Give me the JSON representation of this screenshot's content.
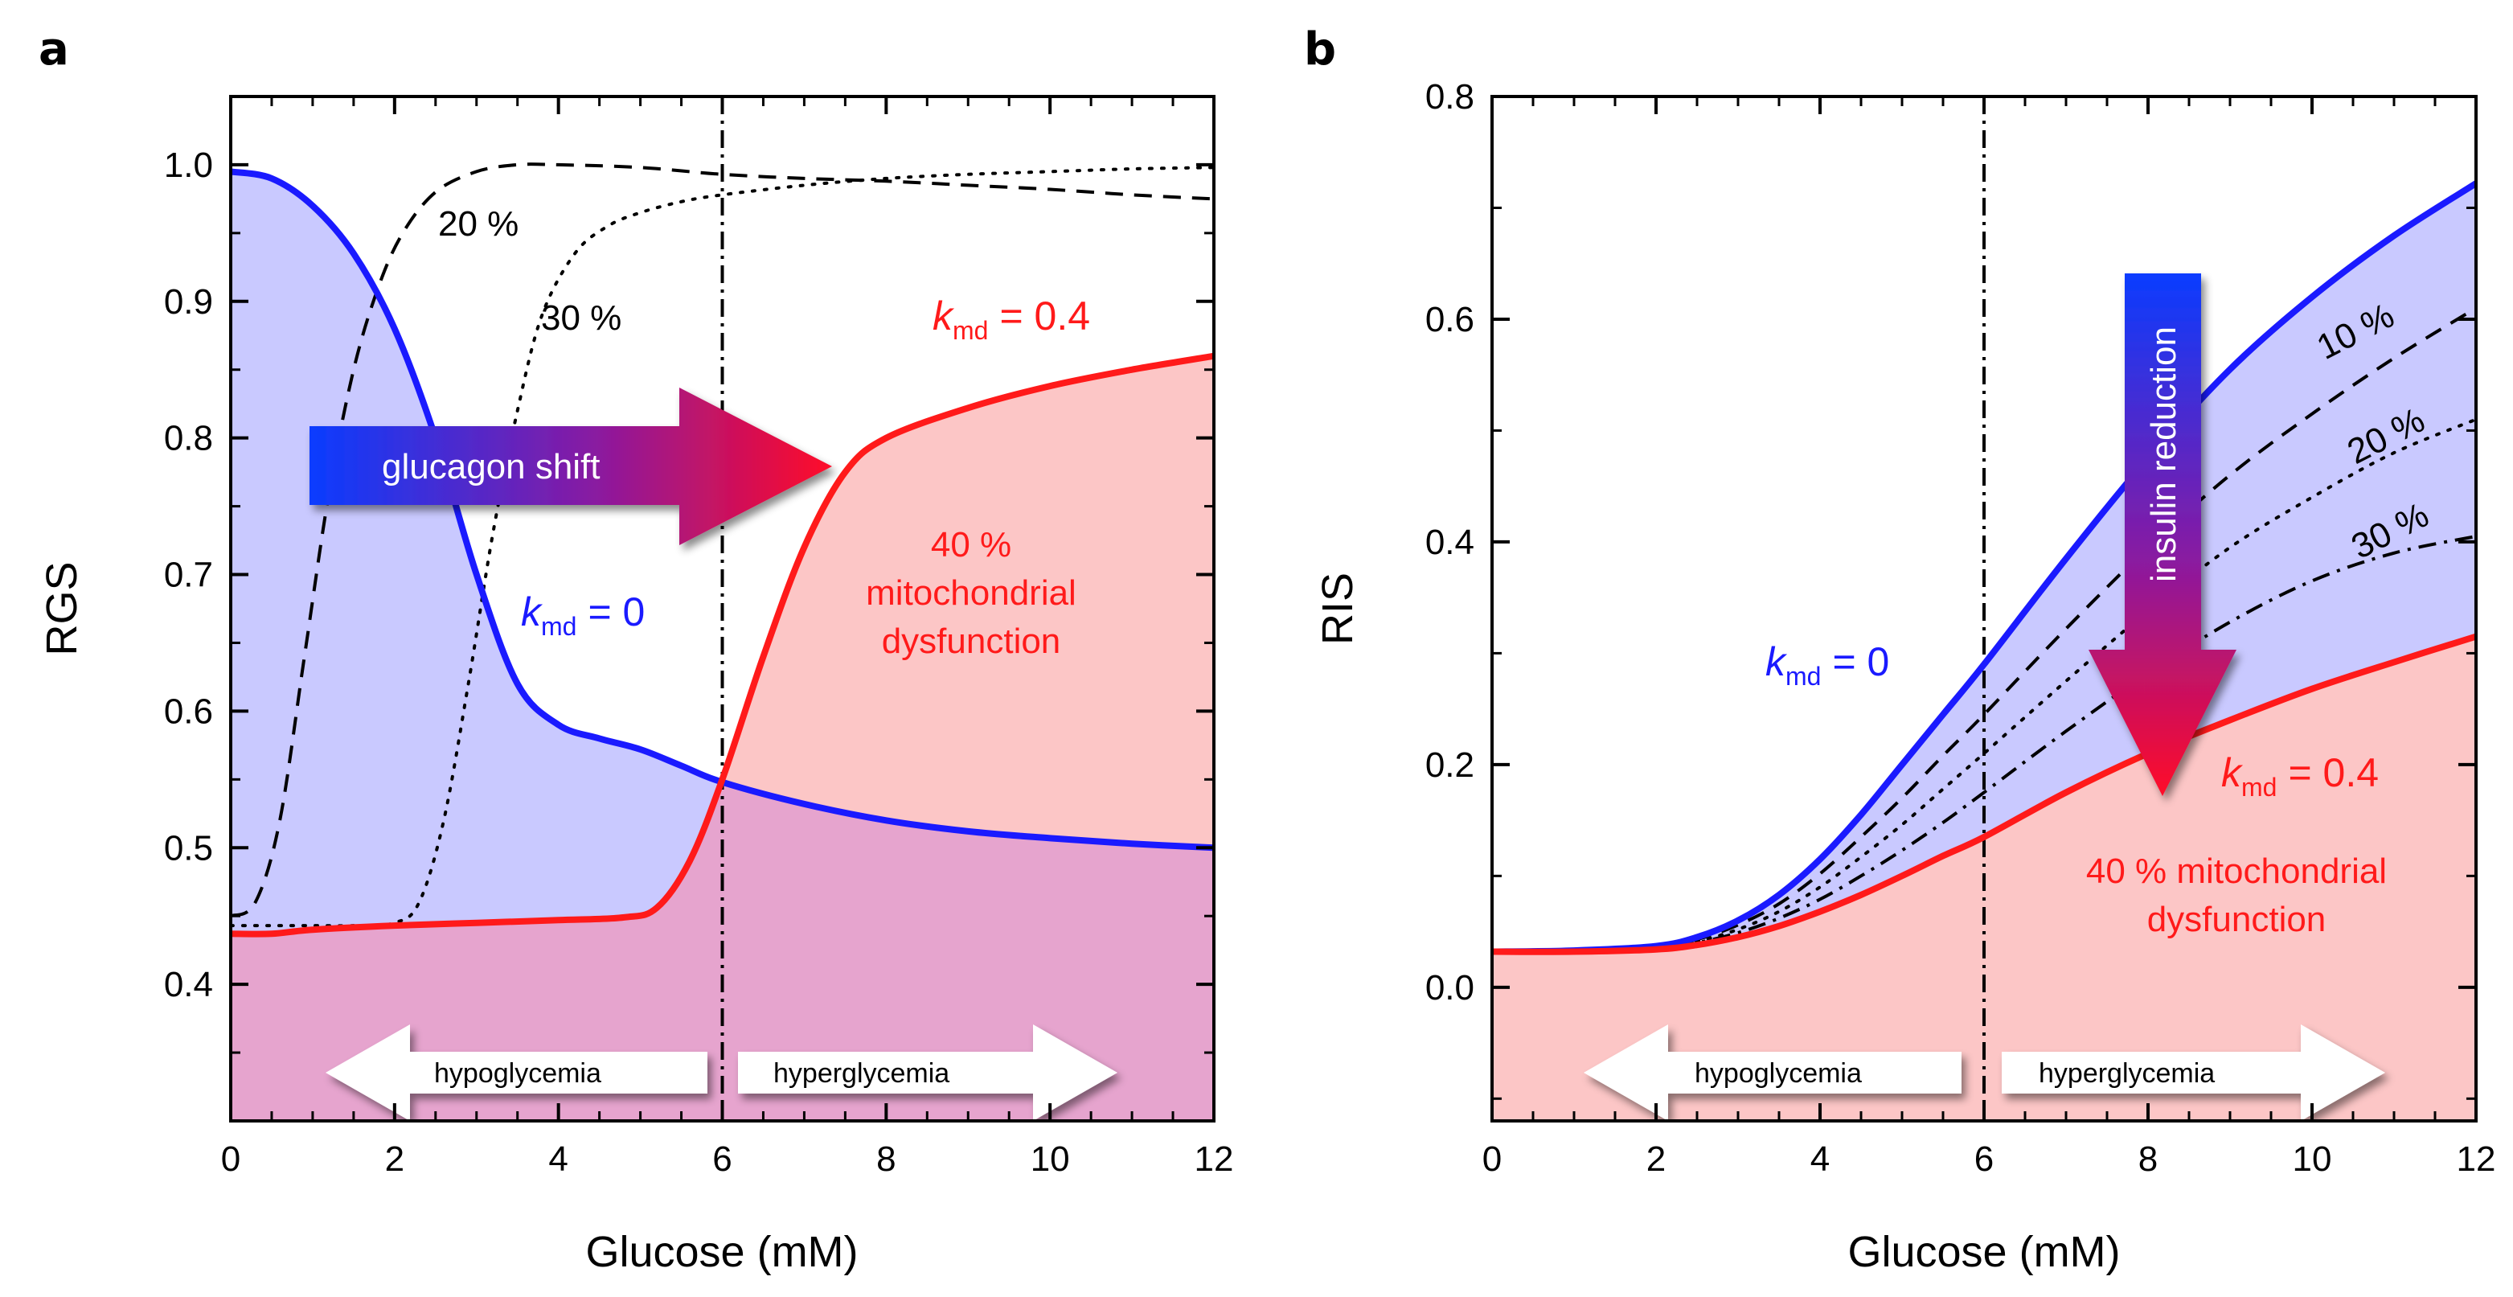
{
  "chart_data": [
    {
      "panel": "a",
      "type": "line",
      "xlabel": "Glucose (mM)",
      "ylabel": "RGS",
      "xlim": [
        0,
        12
      ],
      "ylim": [
        0.3,
        1.05
      ],
      "xticks": [
        0,
        2,
        4,
        6,
        8,
        10,
        12
      ],
      "yticks": [
        0.4,
        0.5,
        0.6,
        0.7,
        0.8,
        0.9,
        1.0
      ],
      "xtick_labels": [
        "0",
        "2",
        "4",
        "6",
        "8",
        "10",
        "12"
      ],
      "ytick_labels": [
        "0.4",
        "0.5",
        "0.6",
        "0.7",
        "0.8",
        "0.9",
        "1.0"
      ],
      "vline_x": 6,
      "series": [
        {
          "name": "kmd = 0",
          "style": "solid",
          "color": "#1a1aff",
          "x": [
            0,
            0.5,
            1,
            1.5,
            2,
            2.5,
            3,
            3.5,
            4,
            4.5,
            5,
            5.5,
            6,
            7,
            8,
            9,
            10,
            11,
            12
          ],
          "y": [
            0.995,
            0.99,
            0.97,
            0.935,
            0.88,
            0.8,
            0.7,
            0.62,
            0.59,
            0.58,
            0.572,
            0.56,
            0.548,
            0.532,
            0.52,
            0.512,
            0.507,
            0.503,
            0.5
          ]
        },
        {
          "name": "kmd = 0.4",
          "style": "solid",
          "color": "#ff1a1a",
          "x": [
            0,
            0.5,
            1,
            2,
            3,
            4,
            4.8,
            5.2,
            5.6,
            6,
            6.5,
            7,
            7.5,
            8,
            9,
            10,
            11,
            12
          ],
          "y": [
            0.437,
            0.437,
            0.44,
            0.443,
            0.445,
            0.447,
            0.449,
            0.456,
            0.49,
            0.55,
            0.64,
            0.72,
            0.775,
            0.8,
            0.822,
            0.838,
            0.85,
            0.86
          ]
        },
        {
          "name": "20 %",
          "style": "dashed",
          "color": "#000000",
          "x": [
            0,
            0.3,
            0.6,
            0.9,
            1.2,
            1.5,
            1.8,
            2.1,
            2.5,
            3,
            3.5,
            4,
            5,
            6,
            7,
            8,
            9,
            10,
            11,
            12
          ],
          "y": [
            0.45,
            0.46,
            0.52,
            0.64,
            0.76,
            0.85,
            0.91,
            0.95,
            0.98,
            0.995,
            1.0,
            1.0,
            0.998,
            0.993,
            0.99,
            0.988,
            0.985,
            0.982,
            0.978,
            0.975
          ]
        },
        {
          "name": "30 %",
          "style": "dotted",
          "color": "#000000",
          "x": [
            0,
            0.5,
            1,
            1.5,
            2,
            2.3,
            2.6,
            2.9,
            3.2,
            3.5,
            3.8,
            4.2,
            4.6,
            5,
            5.5,
            6,
            7,
            8,
            9,
            10,
            11,
            12
          ],
          "y": [
            0.443,
            0.443,
            0.443,
            0.443,
            0.445,
            0.46,
            0.52,
            0.62,
            0.73,
            0.82,
            0.89,
            0.935,
            0.955,
            0.965,
            0.973,
            0.978,
            0.985,
            0.99,
            0.993,
            0.995,
            0.997,
            0.998
          ]
        }
      ],
      "annotations": {
        "label_20": "20 %",
        "label_30": "30 %",
        "kmd_symbol": "k",
        "kmd_subscript": "md",
        "kmd_zero_value": "= 0",
        "kmd_04_value": "= 0.4",
        "dysfunction_line1": "40 %",
        "dysfunction_line2": "mitochondrial",
        "dysfunction_line3": "dysfunction",
        "shift_arrow": "glucagon shift",
        "hypo": "hypoglycemia",
        "hyper": "hyperglycemia"
      }
    },
    {
      "panel": "b",
      "type": "line",
      "xlabel": "Glucose (mM)",
      "ylabel": "RIS",
      "xlim": [
        0,
        12
      ],
      "ylim": [
        -0.12,
        0.8
      ],
      "xticks": [
        0,
        2,
        4,
        6,
        8,
        10,
        12
      ],
      "yticks": [
        0.0,
        0.2,
        0.4,
        0.6,
        0.8
      ],
      "xtick_labels": [
        "0",
        "2",
        "4",
        "6",
        "8",
        "10",
        "12"
      ],
      "ytick_labels": [
        "0.0",
        "0.2",
        "0.4",
        "0.6",
        "0.8"
      ],
      "vline_x": 6,
      "series": [
        {
          "name": "kmd = 0",
          "style": "solid",
          "color": "#1a1aff",
          "x": [
            0,
            1,
            2,
            2.5,
            3,
            3.5,
            4,
            4.5,
            5,
            5.5,
            6,
            7,
            8,
            9,
            10,
            11,
            12
          ],
          "y": [
            0.032,
            0.033,
            0.037,
            0.045,
            0.06,
            0.083,
            0.115,
            0.155,
            0.2,
            0.245,
            0.29,
            0.385,
            0.475,
            0.555,
            0.62,
            0.675,
            0.722
          ]
        },
        {
          "name": "10 %",
          "style": "dashed",
          "color": "#000000",
          "x": [
            0,
            1,
            2,
            2.5,
            3,
            3.5,
            4,
            4.5,
            5,
            5.5,
            6,
            7,
            8,
            9,
            10,
            11,
            12
          ],
          "y": [
            0.032,
            0.033,
            0.036,
            0.043,
            0.056,
            0.075,
            0.102,
            0.135,
            0.17,
            0.208,
            0.245,
            0.322,
            0.395,
            0.46,
            0.515,
            0.565,
            0.61
          ]
        },
        {
          "name": "20 %",
          "style": "dotted",
          "color": "#000000",
          "x": [
            0,
            1,
            2,
            2.5,
            3,
            3.5,
            4,
            4.5,
            5,
            5.5,
            6,
            7,
            8,
            9,
            10,
            11,
            12
          ],
          "y": [
            0.032,
            0.033,
            0.035,
            0.041,
            0.052,
            0.068,
            0.09,
            0.117,
            0.146,
            0.178,
            0.21,
            0.275,
            0.338,
            0.395,
            0.44,
            0.48,
            0.51
          ]
        },
        {
          "name": "30 %",
          "style": "dashdot",
          "color": "#000000",
          "x": [
            0,
            1,
            2,
            2.5,
            3,
            3.5,
            4,
            4.5,
            5,
            5.5,
            6,
            7,
            8,
            9,
            10,
            11,
            12
          ],
          "y": [
            0.032,
            0.033,
            0.035,
            0.04,
            0.049,
            0.062,
            0.079,
            0.1,
            0.123,
            0.148,
            0.175,
            0.23,
            0.282,
            0.328,
            0.365,
            0.39,
            0.405
          ]
        },
        {
          "name": "kmd = 0.4",
          "style": "solid",
          "color": "#ff1a1a",
          "x": [
            0,
            1,
            2,
            2.5,
            3,
            3.5,
            4,
            4.5,
            5,
            5.5,
            6,
            7,
            8,
            9,
            10,
            11,
            12
          ],
          "y": [
            0.032,
            0.032,
            0.034,
            0.038,
            0.045,
            0.055,
            0.068,
            0.083,
            0.1,
            0.118,
            0.135,
            0.175,
            0.21,
            0.24,
            0.268,
            0.292,
            0.315
          ]
        }
      ],
      "annotations": {
        "label_10": "10 %",
        "label_20": "20 %",
        "label_30": "30 %",
        "kmd_symbol": "k",
        "kmd_subscript": "md",
        "kmd_zero_value": "= 0",
        "kmd_04_value": "= 0.4",
        "dysfunction_line1": "40 % mitochondrial",
        "dysfunction_line2": "dysfunction",
        "reduction_arrow": "insulin reduction",
        "hypo": "hypoglycemia",
        "hyper": "hyperglycemia"
      }
    }
  ],
  "panel_labels": {
    "a": "a",
    "b": "b"
  },
  "colors": {
    "blue": "#1a1aff",
    "red": "#ff1a1a",
    "blue_fill": "#c9c9ff",
    "red_fill": "#fcc6c6",
    "overlap_fill": "#e6a4ce",
    "arrow_blue": "#0a3cff",
    "arrow_red": "#ff0a28"
  }
}
